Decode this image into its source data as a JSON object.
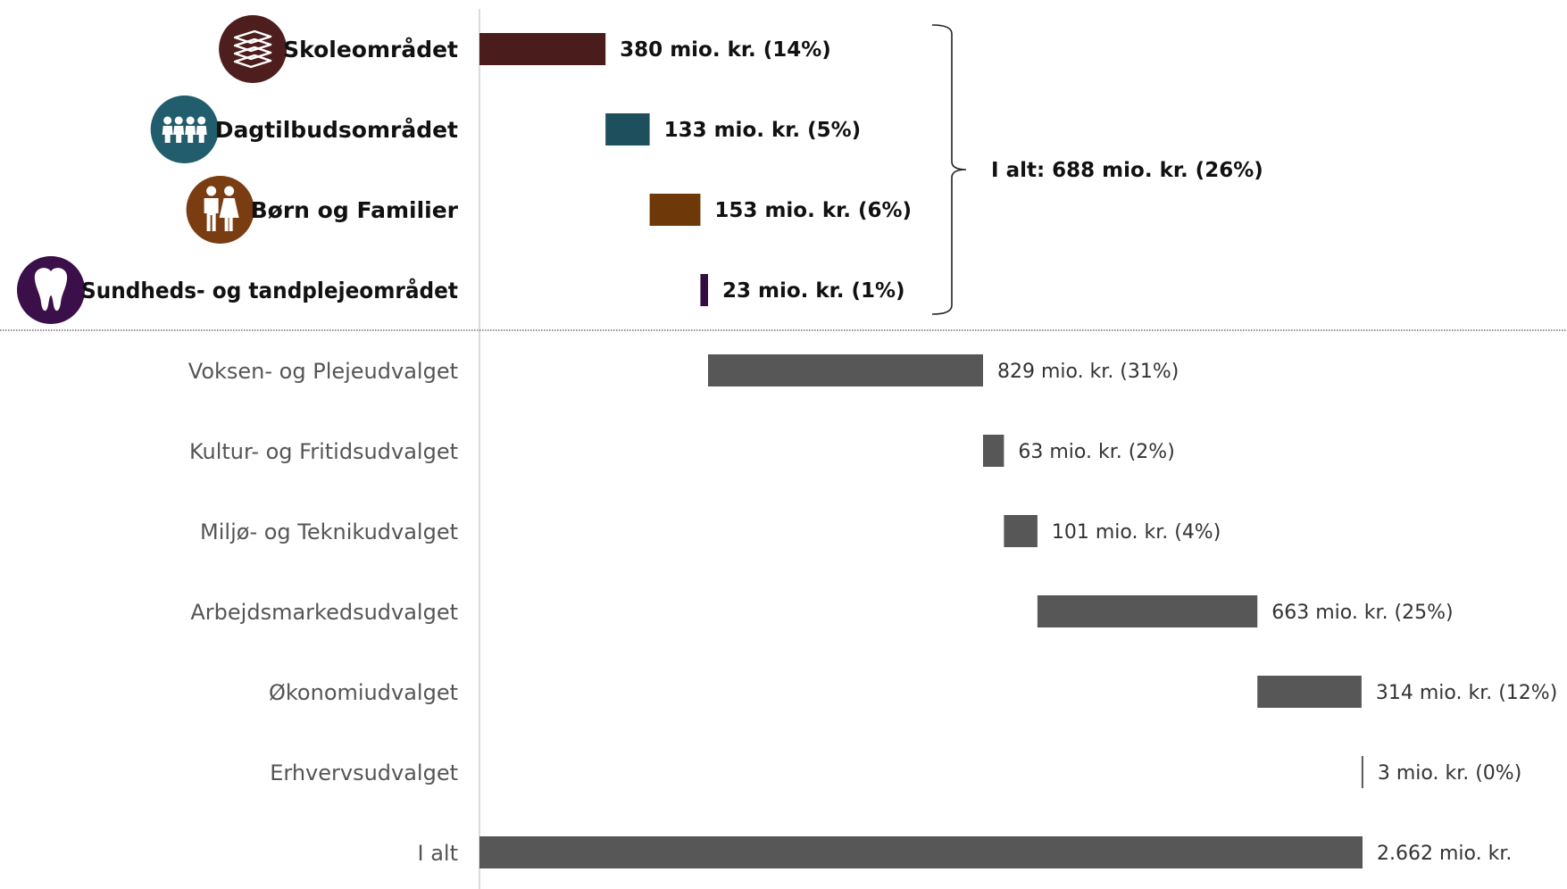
{
  "chart_data": {
    "type": "bar",
    "subtype": "waterfall",
    "unit": "mio. kr.",
    "x_range": [
      0,
      2662
    ],
    "grid": false,
    "legend": false,
    "bar_colors": {
      "Skoleområdet": "#4a1c1c",
      "Dagtilbudsområdet": "#1e4f5c",
      "Børn og Familier": "#6e3808",
      "Sundheds- og tandplejeområdet": "#330c40",
      "default": "#575757"
    },
    "icon_colors": {
      "Skoleområdet": "#4e1e1e",
      "Dagtilbudsområdet": "#215d6c",
      "Børn og Familier": "#7a3d12",
      "Sundheds- og tandplejeområdet": "#3a0f4a"
    },
    "categories": [
      "Skoleområdet",
      "Dagtilbudsområdet",
      "Børn og Familier",
      "Sundheds- og tandplejeområdet",
      "Voksen- og Plejeudvalget",
      "Kultur- og Fritidsudvalget",
      "Miljø- og Teknikudvalget",
      "Arbejdsmarkedsudvalget",
      "Økonomiudvalget",
      "Erhvervsudvalget",
      "I alt"
    ],
    "values": [
      380,
      133,
      153,
      23,
      829,
      63,
      101,
      663,
      314,
      3,
      2662
    ],
    "starts": [
      0,
      380,
      513,
      666,
      689,
      1518,
      1581,
      1682,
      2345,
      2659,
      0
    ],
    "value_labels": [
      "380 mio. kr. (14%)",
      "133 mio. kr. (5%)",
      "153 mio. kr. (6%)",
      "23 mio. kr. (1%)",
      "829 mio. kr. (31%)",
      "63 mio. kr. (2%)",
      "101 mio. kr. (4%)",
      "663 mio. kr. (25%)",
      "314 mio. kr. (12%)",
      "3 mio. kr. (0%)",
      "2.662 mio. kr."
    ],
    "highlighted": [
      true,
      true,
      true,
      true,
      false,
      false,
      false,
      false,
      false,
      false,
      false
    ],
    "icons": [
      "books-icon",
      "children-group-icon",
      "family-icon",
      "tooth-icon",
      null,
      null,
      null,
      null,
      null,
      null,
      null
    ],
    "group_annotation": "I alt: 688 mio. kr. (26%)"
  }
}
